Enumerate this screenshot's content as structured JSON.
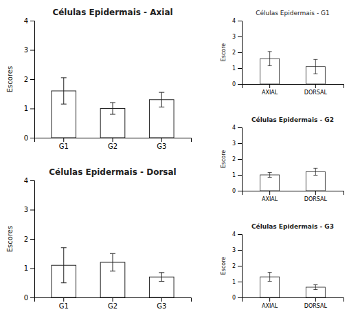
{
  "chart_data": [
    {
      "type": "bar",
      "title": "Células Epidermais - Axial",
      "categories": [
        "G1",
        "G2",
        "G3"
      ],
      "values": [
        1.6,
        1.0,
        1.3
      ],
      "errors": [
        0.45,
        0.2,
        0.25
      ],
      "ylabel": "Escores",
      "ylim": [
        0,
        4
      ],
      "yticks": [
        0,
        1,
        2,
        3,
        4
      ],
      "color": "white",
      "grid": false
    },
    {
      "type": "bar",
      "title": "Células Epidermais - Dorsal",
      "categories": [
        "G1",
        "G2",
        "G3"
      ],
      "values": [
        1.1,
        1.2,
        0.7
      ],
      "errors": [
        0.6,
        0.3,
        0.15
      ],
      "ylabel": "Escores",
      "ylim": [
        0,
        4
      ],
      "yticks": [
        0,
        1,
        2,
        3,
        4
      ],
      "color": "white",
      "grid": false
    },
    {
      "type": "bar",
      "title": "Células Epidermais - G1",
      "categories": [
        "AXIAL",
        "DORSAL"
      ],
      "values": [
        1.6,
        1.1
      ],
      "errors": [
        0.45,
        0.45
      ],
      "ylabel": "Escore",
      "ylim": [
        0,
        4
      ],
      "yticks": [
        0,
        1,
        2,
        3,
        4
      ],
      "color": "white",
      "grid": false
    },
    {
      "type": "bar",
      "title": "Células Epidermais - G2",
      "categories": [
        "AXIAL",
        "DORSAL"
      ],
      "values": [
        1.0,
        1.2
      ],
      "errors": [
        0.15,
        0.22
      ],
      "ylabel": "Escore",
      "ylim": [
        0,
        4
      ],
      "yticks": [
        0,
        1,
        2,
        3,
        4
      ],
      "color": "white",
      "grid": false
    },
    {
      "type": "bar",
      "title": "Células Epidermais - G3",
      "categories": [
        "AXIAL",
        "DORSAL"
      ],
      "values": [
        1.3,
        0.65
      ],
      "errors": [
        0.28,
        0.15
      ],
      "ylabel": "Escore",
      "ylim": [
        0,
        4
      ],
      "yticks": [
        0,
        1,
        2,
        3,
        4
      ],
      "color": "white",
      "grid": false
    }
  ]
}
